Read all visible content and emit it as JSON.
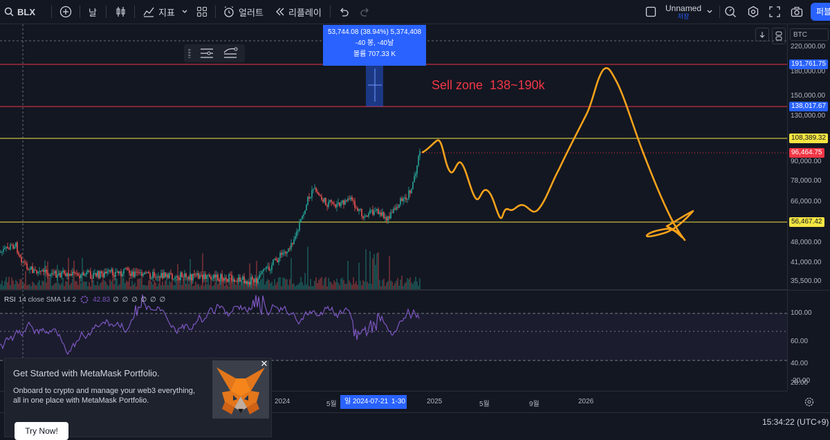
{
  "toolbar": {
    "symbol": "BLX",
    "interval": "날",
    "indicators": "지표",
    "alerts": "얼러트",
    "replay": "리플레이",
    "layout_name": "Unnamed",
    "layout_status": "저장",
    "publish": "퍼블"
  },
  "chart": {
    "currency": "BTC",
    "tooltip": {
      "line1": "53,744.08 (38.94%) 5,374,408",
      "line2": "-40 봉, -40날",
      "line3": "볼륨 707.33 K"
    },
    "annotation": "Sell zone  138~190k",
    "price_ticks": [
      "220,000.00",
      "180,000.00",
      "150,000.00",
      "130,000.00",
      "90,000.00",
      "78,000.00",
      "66,000.00",
      "48,000.00",
      "41,000.00",
      "35,500.00"
    ],
    "price_labels": [
      {
        "value": "191,761.75",
        "color": "#2962ff"
      },
      {
        "value": "138,017.67",
        "color": "#2962ff"
      },
      {
        "value": "108,389.32",
        "color": "#f5e642"
      },
      {
        "value": "96,464.75",
        "color": "#f23645"
      },
      {
        "value": "56,467.42",
        "color": "#f5e642"
      }
    ],
    "rsi_legend": {
      "label": "RSI",
      "params": "14 close SMA 14 2",
      "value": "42.83",
      "extras": "∅ ∅ ∅ ∅ ∅ ∅"
    },
    "rsi_ticks": [
      "100.00",
      "60.00",
      "40.00",
      "28.00",
      "20.00"
    ],
    "time_labels": [
      "2024",
      "5월",
      "2025",
      "5월",
      "9월",
      "2026"
    ],
    "time_cursor": "일 2024-07-21",
    "time_cursor_tail": "1-30",
    "clock": "15:34:22 (UTC+9)"
  },
  "popup": {
    "title": "Get Started with MetaMask Portfolio.",
    "body": "Onboard to crypto and manage your web3 everything, all in one place with MetaMask Portfolio.",
    "button": "Try Now!"
  },
  "colors": {
    "background": "#131722",
    "accent": "#2962ff",
    "annotation": "#f23645",
    "drawing": "#f7a21b",
    "yellow_line": "#f5e642",
    "red_line": "#f23645",
    "rsi": "#7e57c2"
  }
}
